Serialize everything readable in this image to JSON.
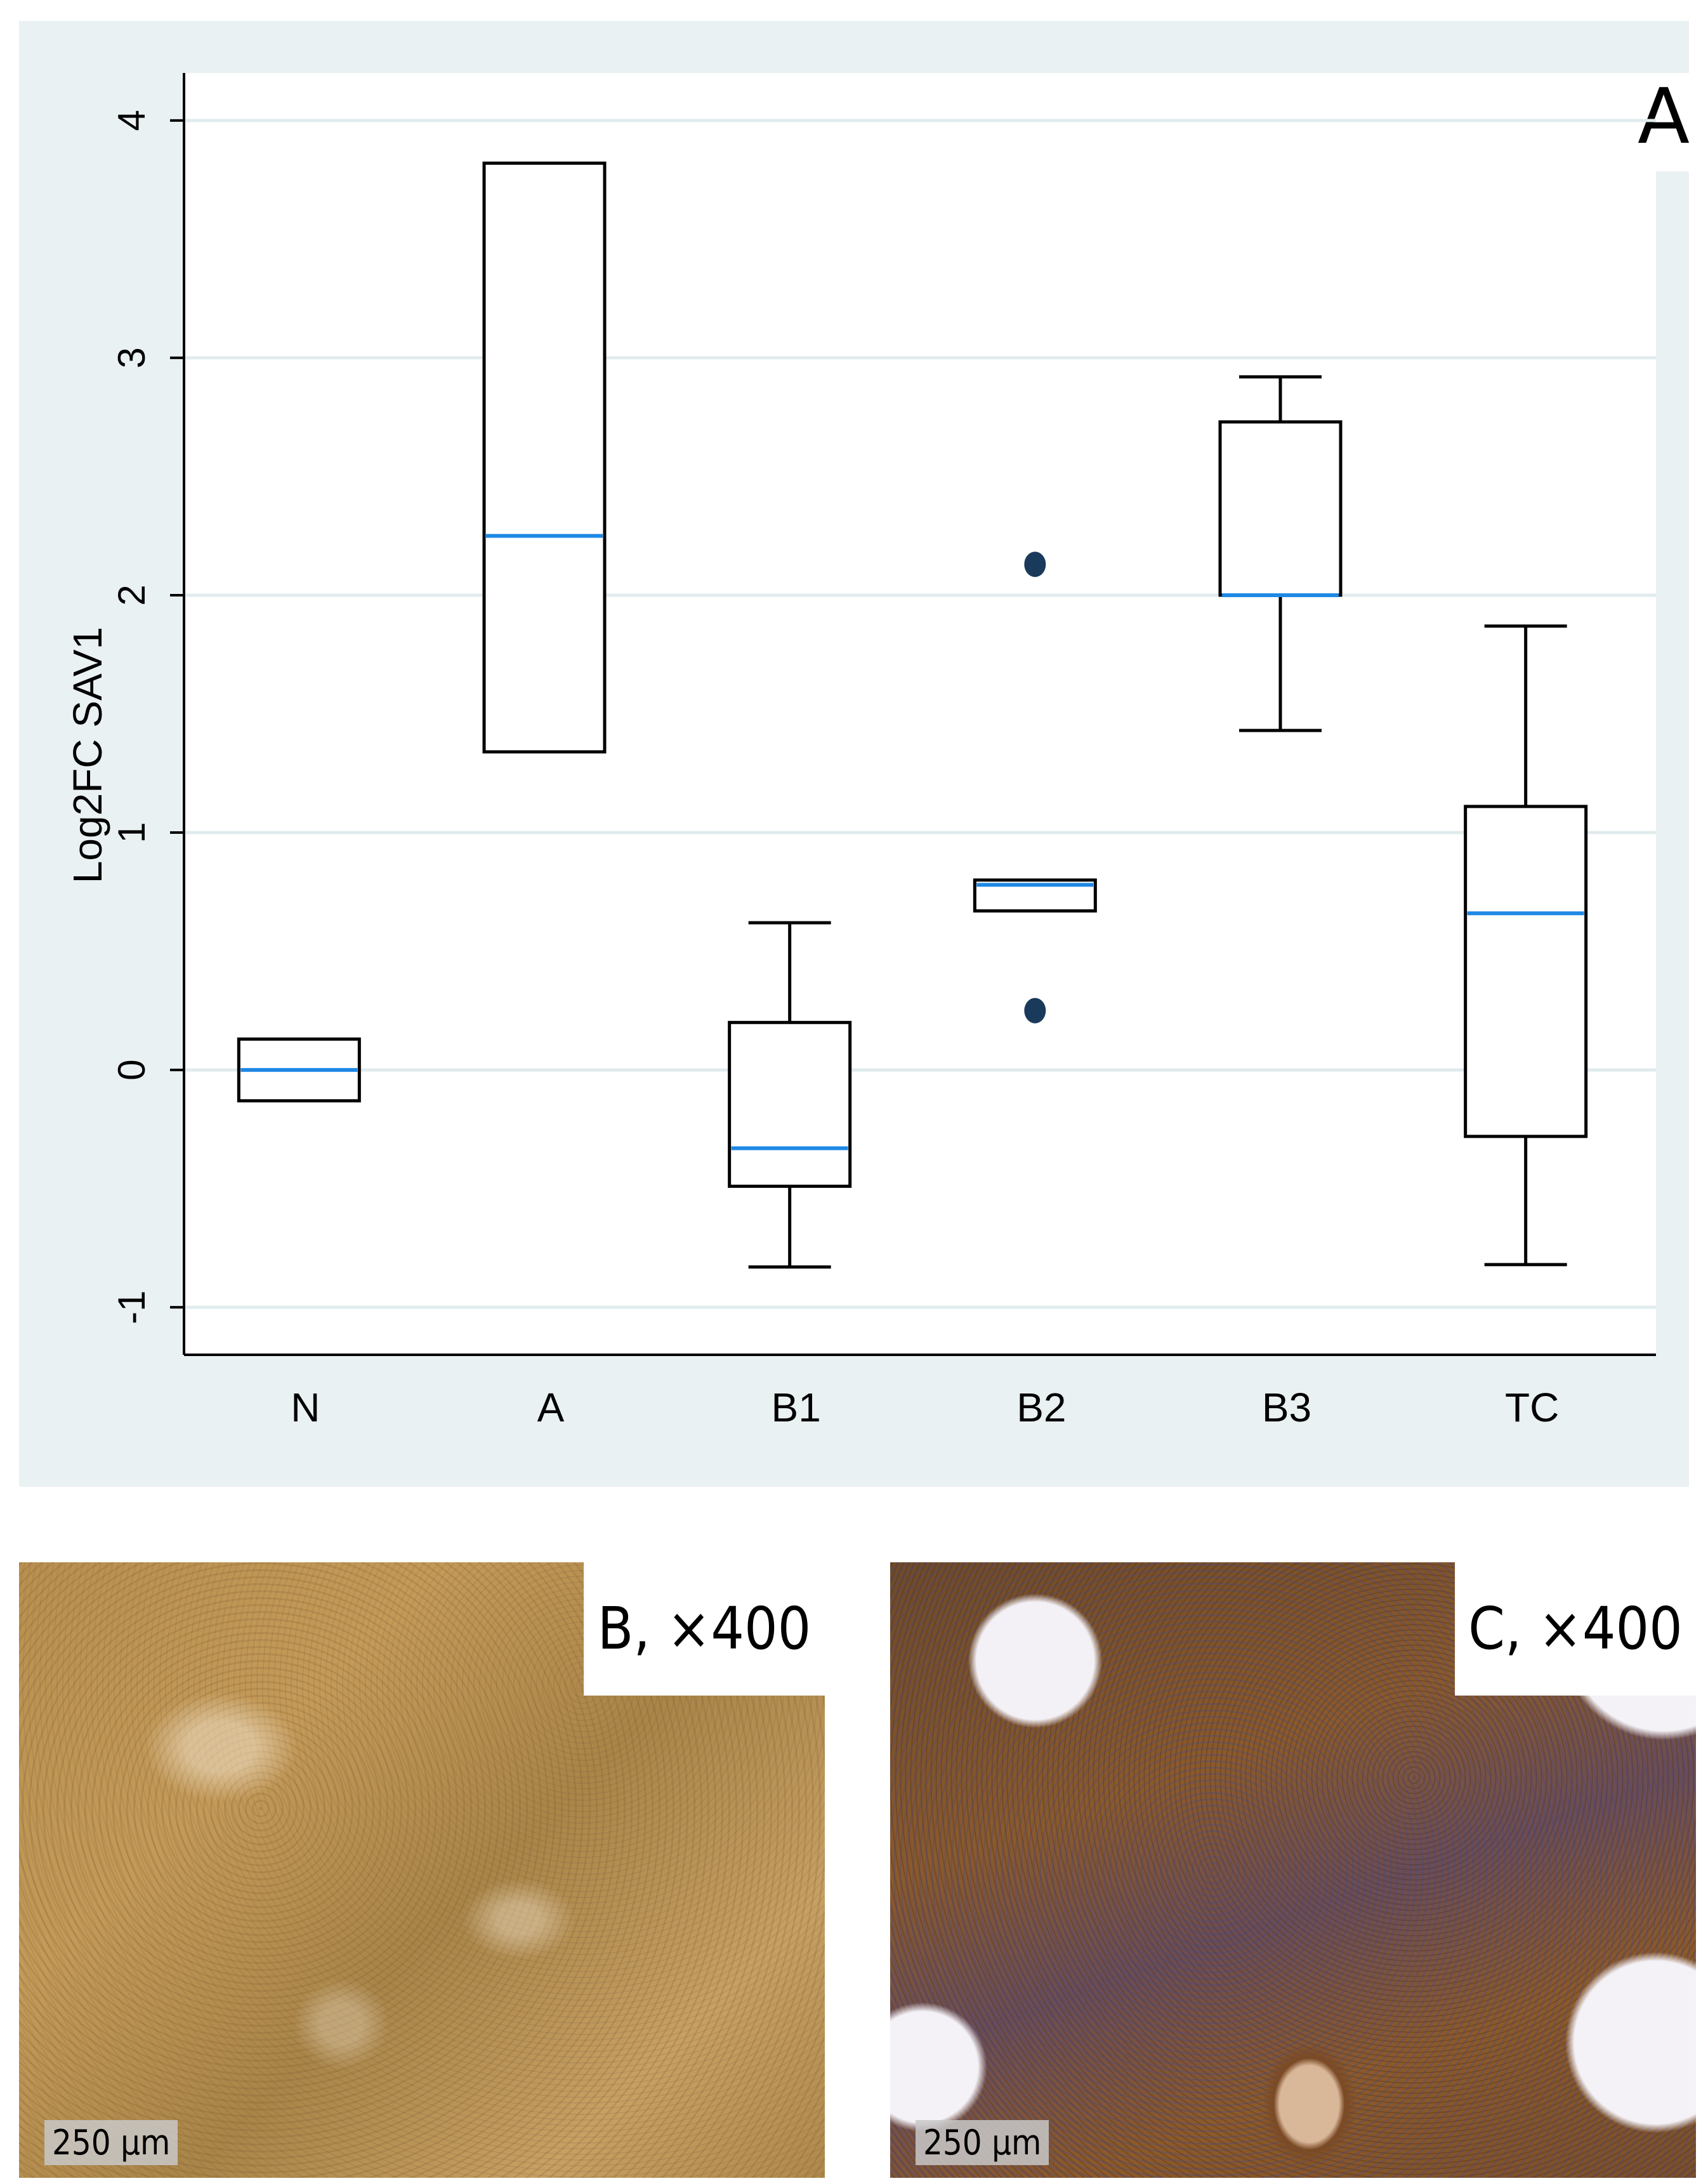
{
  "panels": {
    "a": {
      "label": "A"
    },
    "b": {
      "label": "B, ×400",
      "scale": "250 µm"
    },
    "c": {
      "label": "C, ×400",
      "scale": "250 µm"
    }
  },
  "colors": {
    "panel_bg": "#eaf1f3",
    "grid": "#e0ebee",
    "box_fill": "#ffffff",
    "box_stroke": "#000000",
    "median": "#1e88e5",
    "outlier": "#1a3a5c"
  },
  "chart_data": {
    "type": "box",
    "title": "",
    "xlabel": "",
    "ylabel": "Log2FC SAV1",
    "ylim": [
      -1.2,
      4.2
    ],
    "yticks": [
      -1,
      0,
      1,
      2,
      3,
      4
    ],
    "ytick_labels": [
      "-1",
      "0",
      "1",
      "2",
      "3",
      "4"
    ],
    "grid": true,
    "categories": [
      "N",
      "A",
      "B1",
      "B2",
      "B3",
      "TC"
    ],
    "boxes": [
      {
        "category": "N",
        "whisker_low": -0.13,
        "q1": -0.13,
        "median": 0.0,
        "q3": 0.13,
        "whisker_high": 0.13,
        "outliers": []
      },
      {
        "category": "A",
        "whisker_low": 1.34,
        "q1": 1.34,
        "median": 2.25,
        "q3": 3.82,
        "whisker_high": 3.82,
        "outliers": []
      },
      {
        "category": "B1",
        "whisker_low": -0.83,
        "q1": -0.49,
        "median": -0.33,
        "q3": 0.2,
        "whisker_high": 0.62,
        "outliers": []
      },
      {
        "category": "B2",
        "whisker_low": 0.67,
        "q1": 0.67,
        "median": 0.78,
        "q3": 0.8,
        "whisker_high": 0.8,
        "outliers": [
          2.13,
          0.25
        ]
      },
      {
        "category": "B3",
        "whisker_low": 1.43,
        "q1": 2.0,
        "median": 2.0,
        "q3": 2.73,
        "whisker_high": 2.92,
        "outliers": []
      },
      {
        "category": "TC",
        "whisker_low": -0.82,
        "q1": -0.28,
        "median": 0.66,
        "q3": 1.11,
        "whisker_high": 1.87,
        "outliers": []
      }
    ]
  }
}
